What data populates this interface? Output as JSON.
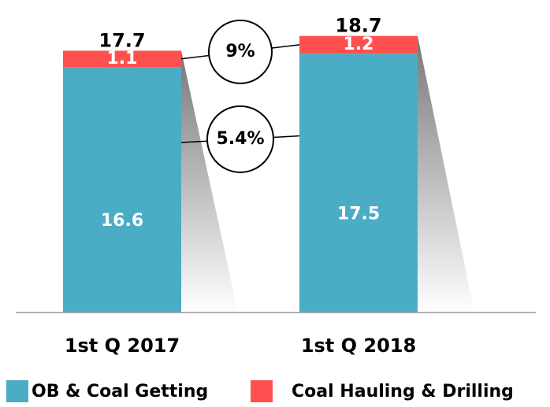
{
  "chart_data": {
    "type": "bar",
    "stacked": true,
    "categories": [
      "1st Q 2017",
      "1st Q 2018"
    ],
    "series": [
      {
        "name": "OB & Coal Getting",
        "color": "#4bacc6",
        "values": [
          16.6,
          17.5
        ]
      },
      {
        "name": "Coal Hauling & Drilling",
        "color": "#ff5050",
        "values": [
          1.1,
          1.2
        ]
      }
    ],
    "totals": [
      17.7,
      18.7
    ],
    "annotations": [
      "9%",
      "5.4%"
    ],
    "ylim": [
      0,
      19
    ]
  }
}
